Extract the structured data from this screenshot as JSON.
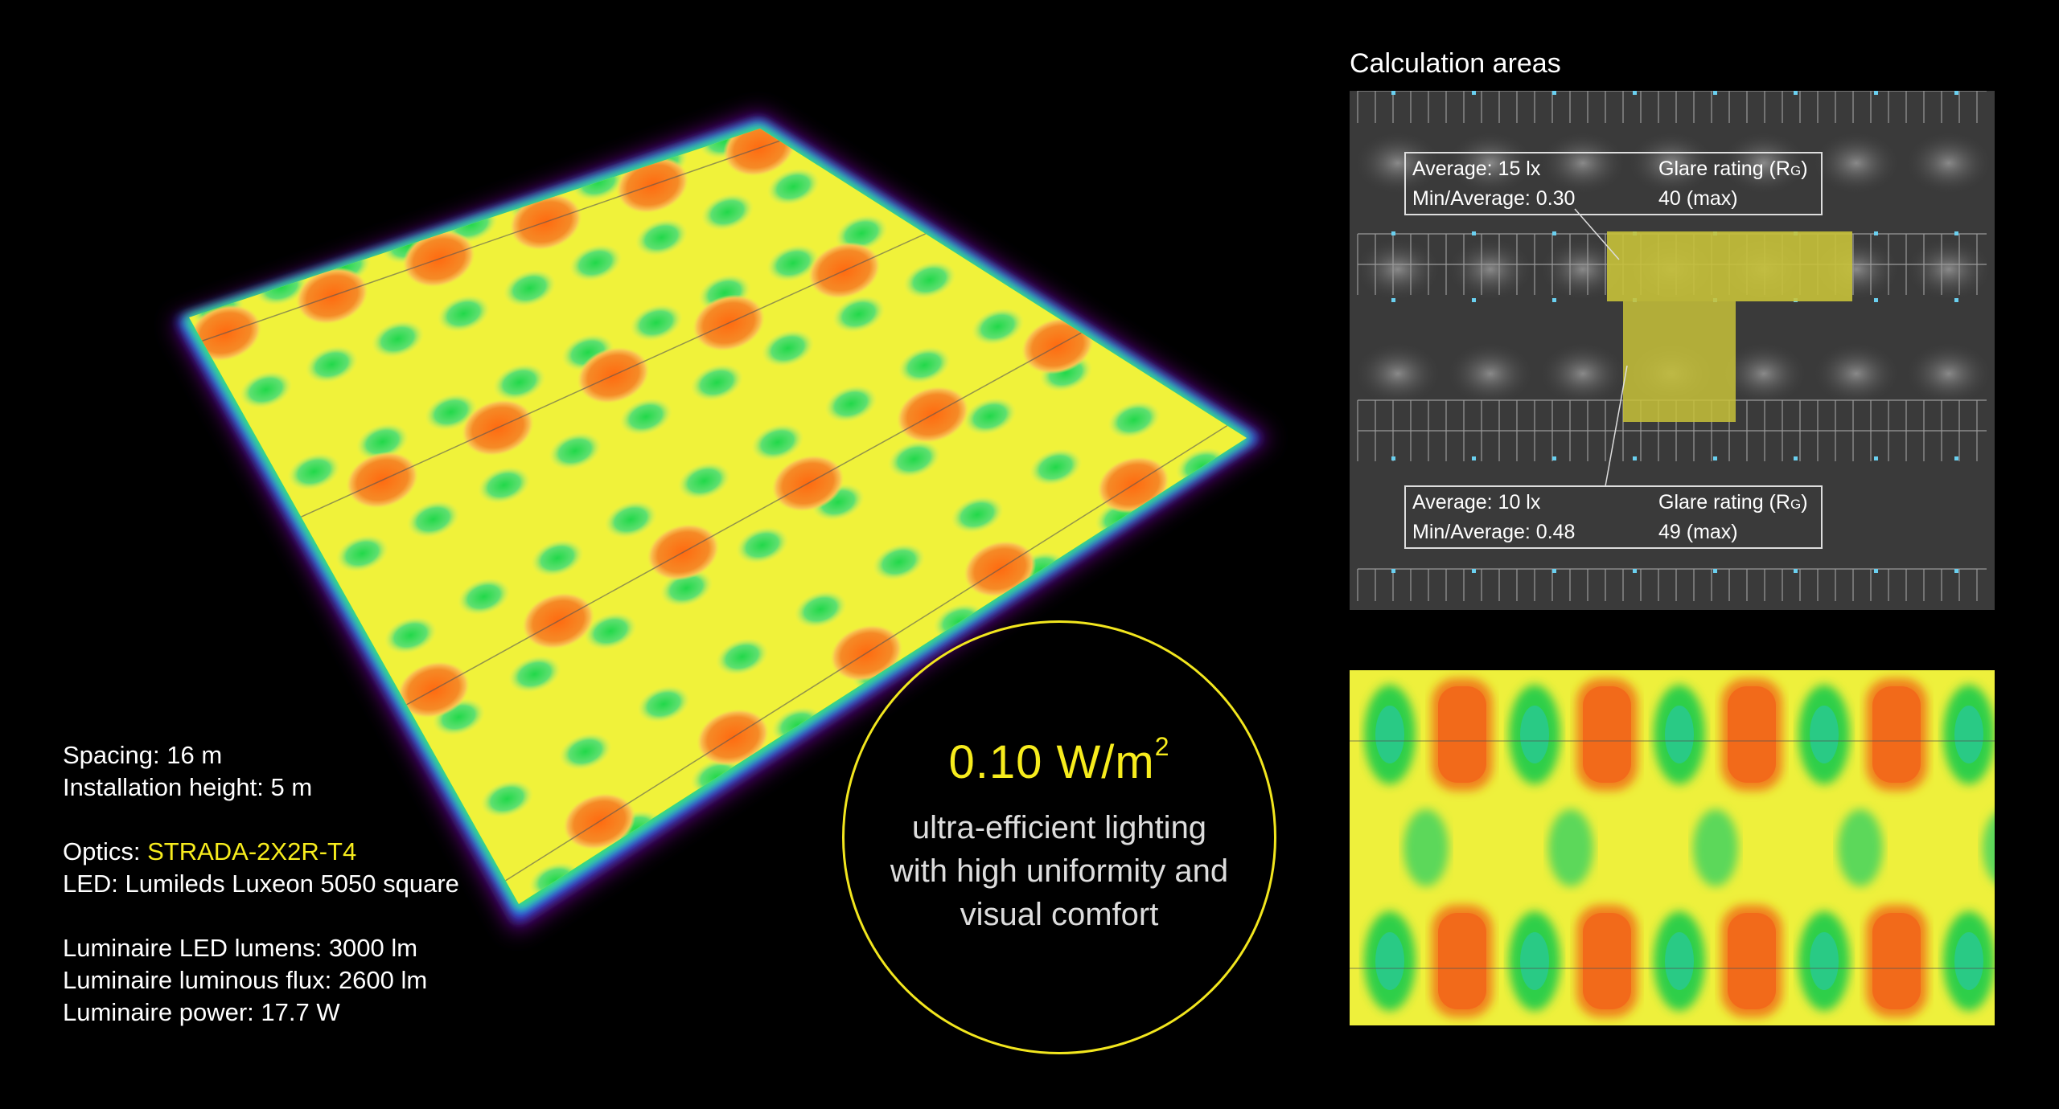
{
  "specs": {
    "spacing": "Spacing: 16 m",
    "height": "Installation height: 5 m",
    "optics_label": "Optics: ",
    "optics_value": "STRADA-2X2R-T4",
    "led": "LED: Lumileds Luxeon 5050 square",
    "lumens": "Luminaire LED lumens: 3000 lm",
    "flux": "Luminaire luminous flux: 2600 lm",
    "power": "Luminaire power: 17.7 W"
  },
  "badge": {
    "value": "0.10 W/m",
    "superscript": "2",
    "line1": "ultra-efficient lighting",
    "line2": "with high uniformity and",
    "line3": "visual comfort"
  },
  "calc": {
    "title": "Calculation areas",
    "area1": {
      "average": "Average: 15 lx",
      "min_avg": "Min/Average: 0.30",
      "glare_label": "Glare rating (R",
      "glare_sub": "G",
      "glare_close": ")",
      "glare_value": "40 (max)"
    },
    "area2": {
      "average": "Average: 10 lx",
      "min_avg": "Min/Average: 0.48",
      "glare_label": "Glare rating (R",
      "glare_sub": "G",
      "glare_close": ")",
      "glare_value": "49 (max)"
    }
  },
  "colors": {
    "accent": "#f7ec1d",
    "heat_orange": "#f0801e",
    "heat_green": "#2fcf48",
    "heat_yellow": "#f4f43a",
    "plan_bg": "#3a3a3a",
    "calc_area": "#c8c23a"
  }
}
